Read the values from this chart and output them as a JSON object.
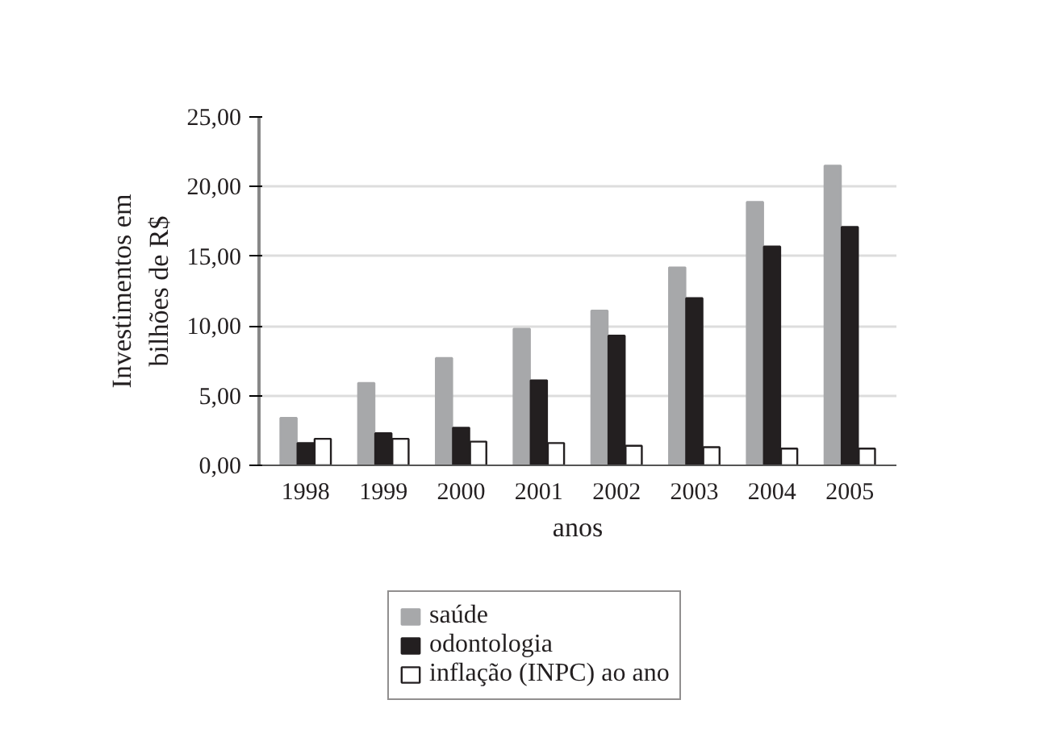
{
  "chart_data": {
    "type": "bar",
    "xlabel": "anos",
    "ylabel": "Investimentos em\nbilhões de R$",
    "categories": [
      "1998",
      "1999",
      "2000",
      "2001",
      "2002",
      "2003",
      "2004",
      "2005"
    ],
    "series": [
      {
        "name": "saúde",
        "color": "#a7a8aa",
        "values": [
          3.4,
          5.9,
          7.7,
          9.8,
          11.1,
          14.2,
          18.9,
          21.5
        ]
      },
      {
        "name": "odontologia",
        "color": "#231f20",
        "values": [
          1.6,
          2.3,
          2.7,
          6.1,
          9.3,
          12.0,
          15.7,
          17.1
        ]
      },
      {
        "name": "inflação (INPC) ao ano",
        "color": "#ffffff",
        "values": [
          1.9,
          1.9,
          1.7,
          1.6,
          1.4,
          1.3,
          1.2,
          1.2
        ]
      }
    ],
    "ylim": [
      0,
      25
    ],
    "yticks": [
      {
        "value": 0,
        "label": "0,00"
      },
      {
        "value": 5,
        "label": "5,00"
      },
      {
        "value": 10,
        "label": "10,00"
      },
      {
        "value": 15,
        "label": "15,00"
      },
      {
        "value": 20,
        "label": "20,00"
      },
      {
        "value": 25,
        "label": "25,00"
      }
    ],
    "grid": "y",
    "legend": "bottom"
  }
}
